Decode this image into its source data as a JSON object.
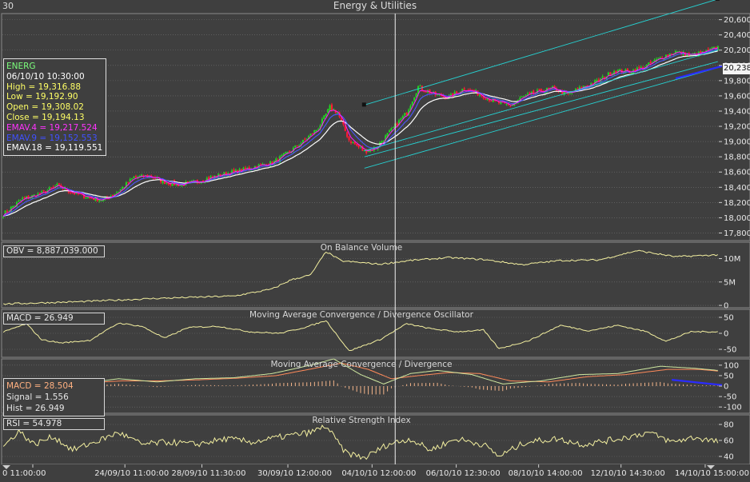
{
  "window": {
    "title": "Energy & Utilities",
    "period": "30"
  },
  "colors": {
    "background": "#3f3f3f",
    "grid": "#707070",
    "up": "#22d022",
    "down": "#ff1a33",
    "ema4": "#ff1aff",
    "ema9": "#4b57ff",
    "ema18": "#ffffff",
    "channel": "#26d0d0",
    "osc": "#f4f0a0",
    "signal": "#ff8a5a",
    "macd_line": "#cfe8a0",
    "trend": "#2b2bff",
    "cursor": "#f0f0f0"
  },
  "info_box": {
    "symbol": "ENERG",
    "datetime": "06/10/10 10:30:00",
    "high": "High  = 19,316.88",
    "low": "Low  = 19,192.90",
    "open": "Open = 19,308.02",
    "close": "Close = 19,194.13",
    "ema4": "EMAV.4 = 19,217.524",
    "ema9": "EMAV.9 = 19,152.553",
    "ema18": "EMAV.18 = 19,119.551"
  },
  "price_badge": "20,238",
  "panels": {
    "obv": {
      "title": "On Balance Volume",
      "label": "OBV = 8,887,039.000"
    },
    "osc": {
      "title": "Moving Average Convergence / Divergence Oscillator",
      "label": "MACD = 26.949"
    },
    "macd": {
      "title": "Moving Average Convergence / Divergence",
      "macd": "MACD = 28.504",
      "signal": "Signal = 1.556",
      "hist": "Hist = 26.949"
    },
    "rsi": {
      "title": "Relative Strength Index",
      "label": "RSI = 54.978"
    }
  },
  "chart_data": [
    {
      "type": "candlestick",
      "title": "Energy & Utilities",
      "series_names": [
        "EMAV.4",
        "EMAV.9",
        "EMAV.18"
      ],
      "y_ticks": [
        "20,600",
        "20,400",
        "20,200",
        "20,000",
        "19,800",
        "19,600",
        "19,400",
        "19,200",
        "19,000",
        "18,800",
        "18,600",
        "18,400",
        "18,200",
        "18,000",
        "17,800"
      ],
      "ylim": [
        17700,
        20680
      ],
      "close_anchors": [
        [
          0,
          18050
        ],
        [
          10,
          18250
        ],
        [
          20,
          18320
        ],
        [
          28,
          18420
        ],
        [
          36,
          18330
        ],
        [
          44,
          18270
        ],
        [
          52,
          18230
        ],
        [
          60,
          18350
        ],
        [
          68,
          18530
        ],
        [
          76,
          18550
        ],
        [
          84,
          18470
        ],
        [
          92,
          18430
        ],
        [
          100,
          18470
        ],
        [
          108,
          18530
        ],
        [
          116,
          18580
        ],
        [
          124,
          18620
        ],
        [
          132,
          18680
        ],
        [
          140,
          18720
        ],
        [
          148,
          18850
        ],
        [
          156,
          19000
        ],
        [
          164,
          19180
        ],
        [
          170,
          19450
        ],
        [
          174,
          19380
        ],
        [
          180,
          19020
        ],
        [
          188,
          18870
        ],
        [
          194,
          18920
        ],
        [
          202,
          19150
        ],
        [
          210,
          19380
        ],
        [
          216,
          19720
        ],
        [
          224,
          19620
        ],
        [
          232,
          19580
        ],
        [
          240,
          19700
        ],
        [
          248,
          19620
        ],
        [
          256,
          19520
        ],
        [
          264,
          19470
        ],
        [
          270,
          19580
        ],
        [
          278,
          19650
        ],
        [
          286,
          19700
        ],
        [
          294,
          19620
        ],
        [
          302,
          19720
        ],
        [
          310,
          19800
        ],
        [
          318,
          19930
        ],
        [
          326,
          19920
        ],
        [
          334,
          19980
        ],
        [
          342,
          20100
        ],
        [
          350,
          20180
        ],
        [
          358,
          20130
        ],
        [
          366,
          20180
        ],
        [
          372,
          20240
        ]
      ],
      "bar_count": 373,
      "x_tick_labels": [
        "0 11:00:00",
        "24/09/10 11:00:00",
        "28/09/10 11:30:00",
        "30/09/10 12:00:00",
        "04/10/10 12:00:00",
        "06/10/10 12:30:00",
        "08/10/10 14:00:00",
        "12/10/10 14:30:00",
        "14/10/10 15:00:00"
      ],
      "grid": true
    },
    {
      "type": "line",
      "title": "On Balance Volume",
      "y_ticks": [
        "10M",
        "5M",
        "0"
      ],
      "ylim": [
        -500000,
        13500000
      ],
      "anchors": [
        [
          0,
          300000
        ],
        [
          40,
          800000
        ],
        [
          80,
          1500000
        ],
        [
          120,
          2000000
        ],
        [
          140,
          3500000
        ],
        [
          150,
          5500000
        ],
        [
          160,
          6500000
        ],
        [
          168,
          11500000
        ],
        [
          176,
          9500000
        ],
        [
          196,
          8800000
        ],
        [
          212,
          9600000
        ],
        [
          232,
          10200000
        ],
        [
          250,
          9800000
        ],
        [
          270,
          8700000
        ],
        [
          290,
          9600000
        ],
        [
          310,
          9700000
        ],
        [
          330,
          11700000
        ],
        [
          350,
          10400000
        ],
        [
          372,
          10800000
        ]
      ]
    },
    {
      "type": "line",
      "title": "Moving Average Convergence / Divergence Oscillator",
      "y_ticks": [
        "50",
        "0",
        "-50"
      ],
      "ylim": [
        -75,
        75
      ],
      "anchors": [
        [
          0,
          4
        ],
        [
          12,
          30
        ],
        [
          20,
          -20
        ],
        [
          30,
          -30
        ],
        [
          45,
          -22
        ],
        [
          60,
          32
        ],
        [
          72,
          22
        ],
        [
          84,
          -15
        ],
        [
          96,
          18
        ],
        [
          112,
          22
        ],
        [
          128,
          5
        ],
        [
          144,
          0
        ],
        [
          158,
          20
        ],
        [
          168,
          40
        ],
        [
          180,
          -55
        ],
        [
          196,
          -20
        ],
        [
          210,
          30
        ],
        [
          222,
          15
        ],
        [
          236,
          5
        ],
        [
          250,
          10
        ],
        [
          258,
          -48
        ],
        [
          274,
          -22
        ],
        [
          290,
          25
        ],
        [
          305,
          8
        ],
        [
          320,
          25
        ],
        [
          335,
          5
        ],
        [
          345,
          -25
        ],
        [
          358,
          5
        ],
        [
          372,
          5
        ]
      ]
    },
    {
      "type": "line",
      "title": "Moving Average Convergence / Divergence",
      "series_names": [
        "MACD",
        "Signal",
        "Hist"
      ],
      "y_ticks": [
        "100",
        "50",
        "0",
        "-50",
        "-100"
      ],
      "ylim": [
        -130,
        130
      ],
      "macd_anchors": [
        [
          0,
          10
        ],
        [
          20,
          25
        ],
        [
          40,
          12
        ],
        [
          60,
          35
        ],
        [
          80,
          20
        ],
        [
          100,
          35
        ],
        [
          120,
          40
        ],
        [
          140,
          60
        ],
        [
          160,
          100
        ],
        [
          172,
          130
        ],
        [
          186,
          55
        ],
        [
          198,
          10
        ],
        [
          212,
          60
        ],
        [
          226,
          75
        ],
        [
          244,
          55
        ],
        [
          260,
          10
        ],
        [
          280,
          25
        ],
        [
          300,
          55
        ],
        [
          320,
          60
        ],
        [
          342,
          95
        ],
        [
          360,
          85
        ],
        [
          372,
          75
        ]
      ],
      "signal_anchors": [
        [
          0,
          8
        ],
        [
          22,
          18
        ],
        [
          42,
          15
        ],
        [
          62,
          25
        ],
        [
          82,
          25
        ],
        [
          102,
          30
        ],
        [
          122,
          38
        ],
        [
          142,
          50
        ],
        [
          162,
          85
        ],
        [
          176,
          110
        ],
        [
          190,
          80
        ],
        [
          202,
          35
        ],
        [
          216,
          50
        ],
        [
          232,
          65
        ],
        [
          248,
          60
        ],
        [
          264,
          25
        ],
        [
          284,
          20
        ],
        [
          304,
          45
        ],
        [
          324,
          55
        ],
        [
          346,
          80
        ],
        [
          362,
          80
        ],
        [
          372,
          72
        ]
      ]
    },
    {
      "type": "line",
      "title": "Relative Strength Index",
      "y_ticks": [
        "80",
        "60",
        "40"
      ],
      "ylim": [
        30,
        92
      ],
      "anchors": [
        [
          0,
          52
        ],
        [
          8,
          72
        ],
        [
          16,
          55
        ],
        [
          26,
          65
        ],
        [
          36,
          48
        ],
        [
          50,
          60
        ],
        [
          60,
          70
        ],
        [
          72,
          55
        ],
        [
          86,
          58
        ],
        [
          100,
          55
        ],
        [
          116,
          62
        ],
        [
          130,
          58
        ],
        [
          146,
          65
        ],
        [
          160,
          70
        ],
        [
          168,
          78
        ],
        [
          178,
          45
        ],
        [
          188,
          38
        ],
        [
          200,
          55
        ],
        [
          212,
          62
        ],
        [
          222,
          48
        ],
        [
          236,
          62
        ],
        [
          250,
          55
        ],
        [
          258,
          40
        ],
        [
          272,
          58
        ],
        [
          288,
          62
        ],
        [
          302,
          55
        ],
        [
          320,
          62
        ],
        [
          336,
          70
        ],
        [
          348,
          58
        ],
        [
          360,
          64
        ],
        [
          372,
          58
        ]
      ]
    }
  ]
}
